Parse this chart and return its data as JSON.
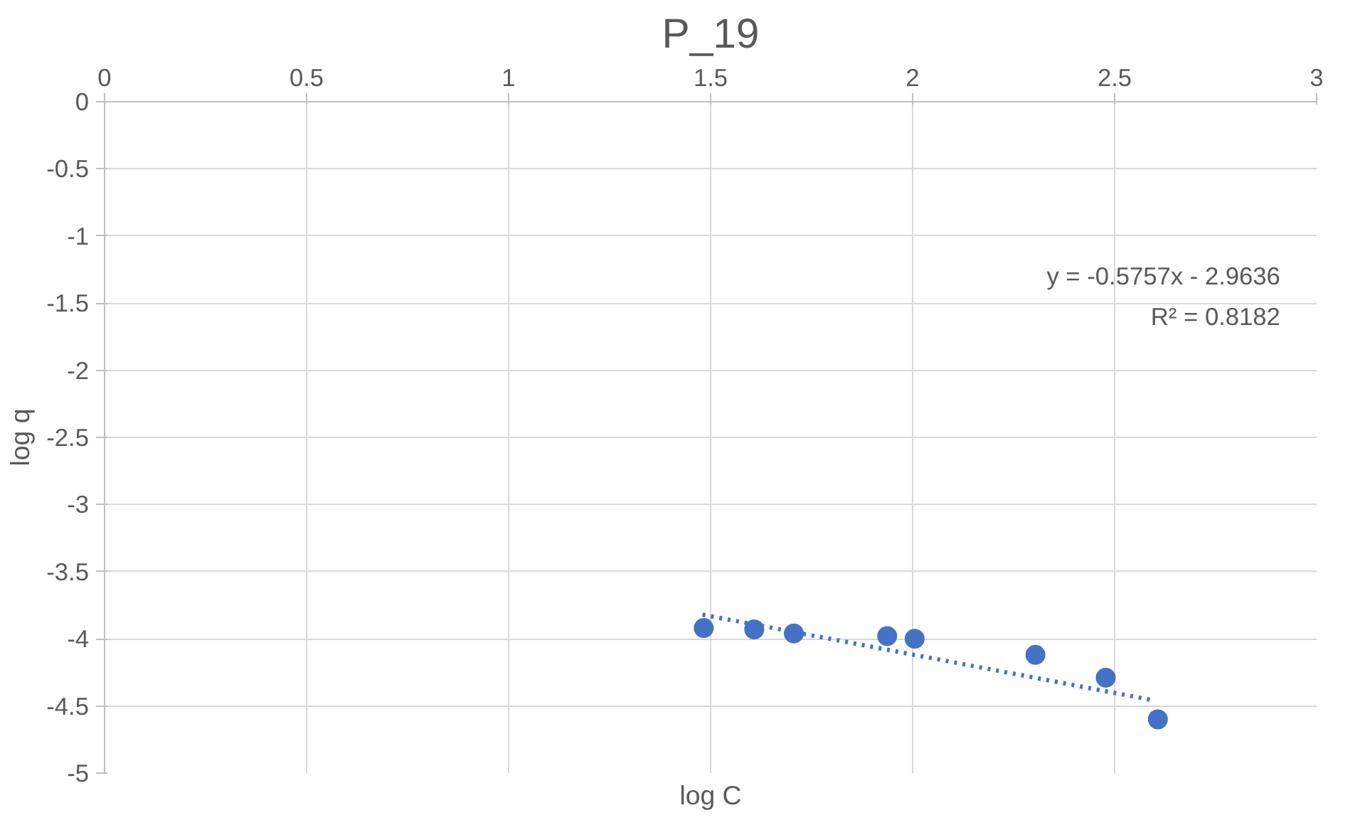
{
  "chart_data": {
    "type": "scatter",
    "title": "P_19",
    "xlabel": "log C",
    "ylabel": "log q",
    "xlim": [
      0,
      3
    ],
    "ylim": [
      -5,
      0
    ],
    "xticks": [
      0,
      0.5,
      1,
      1.5,
      2,
      2.5,
      3
    ],
    "yticks": [
      0,
      -0.5,
      -1,
      -1.5,
      -2,
      -2.5,
      -3,
      -3.5,
      -4,
      -4.5,
      -5
    ],
    "grid": true,
    "series": [
      {
        "marker": "circle",
        "color": "#4472c4",
        "x": [
          1.483,
          1.608,
          1.706,
          1.937,
          2.005,
          2.304,
          2.478,
          2.607
        ],
        "values": [
          -3.92,
          -3.93,
          -3.96,
          -3.98,
          -4.0,
          -4.12,
          -4.29,
          -4.6
        ]
      },
      {
        "type": "line",
        "color": "#4472c4",
        "line_style": "dotted",
        "x": [
          1.48,
          2.6
        ],
        "values": [
          -3.82,
          -4.46
        ]
      }
    ],
    "annotations": [
      "y = -0.5757x - 2.9636",
      "R² = 0.8182"
    ]
  }
}
